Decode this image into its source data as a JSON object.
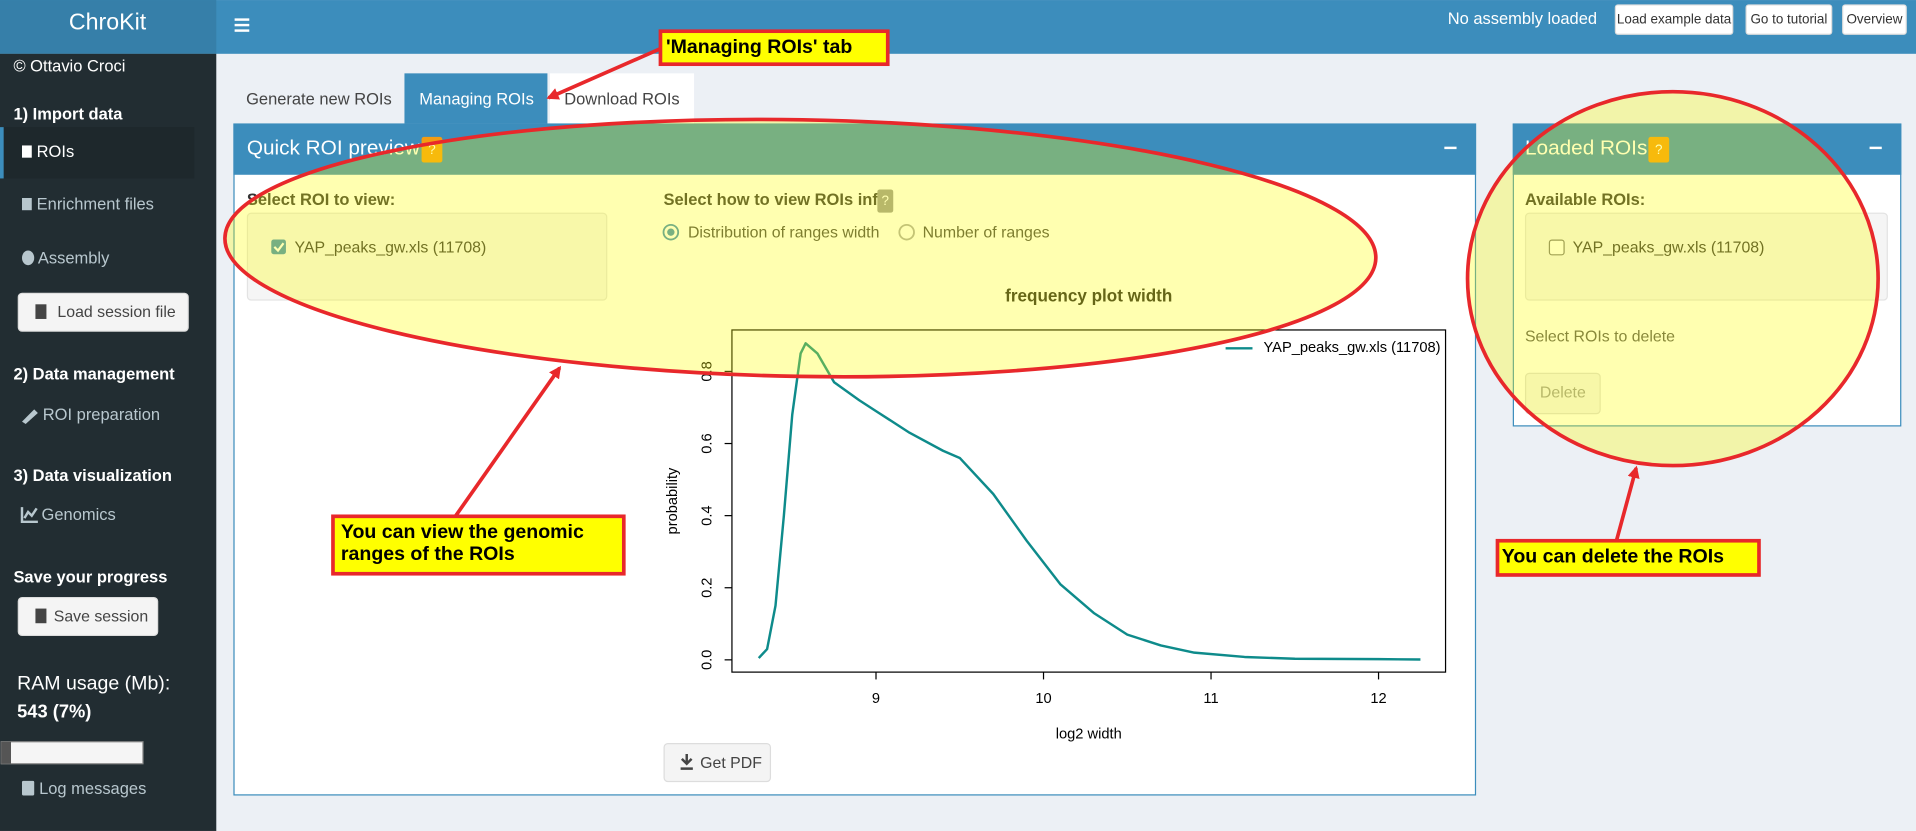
{
  "header": {
    "brand": "ChroKit",
    "status": "No assembly loaded",
    "buttons": [
      "Load example data",
      "Go to tutorial",
      "Overview"
    ]
  },
  "sidebar": {
    "author": "© Ottavio Croci",
    "sections": [
      {
        "title": "1) Import data",
        "items": [
          "ROIs",
          "Enrichment files",
          "Assembly"
        ],
        "button": "Load session file"
      },
      {
        "title": "2) Data management",
        "items": [
          "ROI preparation"
        ]
      },
      {
        "title": "3) Data visualization",
        "items": [
          "Genomics"
        ]
      },
      {
        "title": "Save your progress",
        "button": "Save session"
      }
    ],
    "ram_label": "RAM usage (Mb):",
    "ram_value": "543 (7%)",
    "log": "Log messages"
  },
  "tabs": [
    "Generate new ROIs",
    "Managing ROIs",
    "Download ROIs"
  ],
  "preview_box": {
    "title": "Quick ROI preview",
    "help": "?",
    "select_label": "Select ROI to view:",
    "roi_option": "YAP_peaks_gw.xls (11708)",
    "view_label": "Select how to view ROIs info",
    "view_help": "?",
    "view_options": [
      "Distribution of ranges width",
      "Number of ranges"
    ],
    "button": "Get PDF"
  },
  "chart_data": {
    "type": "line",
    "title": "frequency plot width",
    "x_label": "log2 width",
    "y_label": "probability",
    "x": [
      8.3,
      8.35,
      8.4,
      8.45,
      8.5,
      8.55,
      8.58,
      8.65,
      8.75,
      8.9,
      9.0,
      9.2,
      9.4,
      9.5,
      9.7,
      9.9,
      10.1,
      10.3,
      10.5,
      10.7,
      10.9,
      11.2,
      11.5,
      12.0,
      12.25
    ],
    "series": [
      {
        "name": "YAP_peaks_gw.xls (11708)",
        "color": "#0e8b8b",
        "values": [
          0.005,
          0.03,
          0.15,
          0.4,
          0.68,
          0.85,
          0.878,
          0.85,
          0.77,
          0.72,
          0.69,
          0.63,
          0.58,
          0.56,
          0.46,
          0.33,
          0.21,
          0.13,
          0.07,
          0.04,
          0.02,
          0.008,
          0.003,
          0.002,
          0.001
        ]
      }
    ],
    "xlim": [
      8.14,
      12.4
    ],
    "ylim": [
      -0.034,
      0.915
    ],
    "xticks": [
      9,
      10,
      11,
      12
    ],
    "yticks": [
      {
        "value": 0,
        "label": "0.0"
      },
      {
        "value": 0.2,
        "label": "0.2"
      },
      {
        "value": 0.4,
        "label": "0.4"
      },
      {
        "value": 0.6,
        "label": "0.6"
      },
      {
        "value": 0.8,
        "label": "0.8"
      }
    ],
    "legend": "upper right"
  },
  "loaded_box": {
    "title": "Loaded ROIs",
    "help": "?",
    "available_label": "Available ROIs:",
    "roi_option": "YAP_peaks_gw.xls (11708)",
    "delete_label": "Select ROIs to delete",
    "delete_button": "Delete"
  },
  "annotations": {
    "tab_note": "'Managing ROIs' tab",
    "preview_note": [
      "You can view the genomic",
      "ranges of the ROIs"
    ],
    "delete_note": "You can delete the ROIs"
  }
}
